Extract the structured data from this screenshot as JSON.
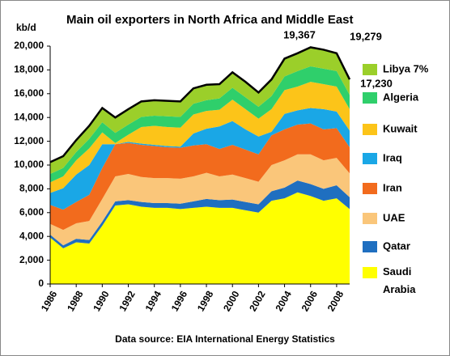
{
  "chart_data": {
    "type": "stacked_area",
    "title": "Main oil exporters  in North Africa and Middle East",
    "y_label": "kb/d",
    "source": "Data source: EIA International Energy Statistics",
    "x": [
      1986,
      1987,
      1988,
      1989,
      1990,
      1991,
      1992,
      1993,
      1994,
      1995,
      1996,
      1997,
      1998,
      1999,
      2000,
      2001,
      2002,
      2003,
      2004,
      2005,
      2006,
      2007,
      2008,
      2009
    ],
    "xlim": [
      1986,
      2009
    ],
    "xticks": [
      1986,
      1988,
      1990,
      1992,
      1994,
      1996,
      1998,
      2000,
      2002,
      2004,
      2006,
      2008
    ],
    "ylim": [
      0,
      20000
    ],
    "yticks": [
      0,
      {
        "value": 2000,
        "label": "2,000"
      },
      {
        "value": 4000,
        "label": "4,000"
      },
      {
        "value": 6000,
        "label": "6,000"
      },
      {
        "value": 8000,
        "label": "8,000"
      },
      {
        "value": 10000,
        "label": "10,000"
      },
      {
        "value": 12000,
        "label": "12,000"
      },
      {
        "value": 14000,
        "label": "14,000"
      },
      {
        "value": 16000,
        "label": "16,000"
      },
      {
        "value": 18000,
        "label": "18,000"
      },
      {
        "value": 20000,
        "label": "20,000"
      }
    ],
    "series": [
      {
        "name": "Saudi Arabia",
        "color": "#ffff00",
        "values": [
          3900,
          3000,
          3500,
          3400,
          4900,
          6600,
          6700,
          6500,
          6400,
          6400,
          6300,
          6400,
          6500,
          6400,
          6400,
          6200,
          6000,
          7000,
          7200,
          7700,
          7400,
          7000,
          7200,
          6300
        ]
      },
      {
        "name": "Qatar",
        "color": "#1f6fc0",
        "values": [
          250,
          250,
          300,
          300,
          350,
          350,
          350,
          400,
          400,
          400,
          450,
          550,
          650,
          650,
          700,
          700,
          700,
          800,
          900,
          1000,
          1000,
          1000,
          1100,
          1000
        ]
      },
      {
        "name": "UAE",
        "color": "#fac67a",
        "values": [
          900,
          1300,
          1300,
          1600,
          1900,
          2100,
          2200,
          2100,
          2100,
          2100,
          2100,
          2100,
          2200,
          2000,
          2100,
          2000,
          1900,
          2200,
          2300,
          2200,
          2500,
          2400,
          2300,
          2000
        ]
      },
      {
        "name": "Iran",
        "color": "#f26b1d",
        "values": [
          1600,
          1700,
          1800,
          2200,
          2600,
          2700,
          2600,
          2700,
          2700,
          2600,
          2600,
          2600,
          2400,
          2300,
          2500,
          2400,
          2300,
          2500,
          2600,
          2500,
          2600,
          2600,
          2500,
          2200
        ]
      },
      {
        "name": "Iraq",
        "color": "#1aa7e6",
        "values": [
          1000,
          1800,
          2300,
          2500,
          2000,
          0,
          100,
          100,
          100,
          100,
          100,
          1000,
          1300,
          1900,
          2000,
          1700,
          1500,
          300,
          1300,
          1200,
          1300,
          1700,
          1400,
          1400
        ]
      },
      {
        "name": "Kuwait",
        "color": "#fcc419",
        "values": [
          900,
          1000,
          1200,
          1400,
          1000,
          100,
          600,
          1400,
          1600,
          1600,
          1600,
          1600,
          1500,
          1400,
          1800,
          1700,
          1500,
          1900,
          2000,
          2000,
          2200,
          2100,
          2100,
          1800
        ]
      },
      {
        "name": "Algeria",
        "color": "#2fcf6b",
        "values": [
          700,
          700,
          700,
          800,
          850,
          850,
          850,
          850,
          850,
          900,
          900,
          900,
          900,
          950,
          1000,
          1000,
          1000,
          1100,
          1150,
          1300,
          1300,
          1300,
          1300,
          1200
        ]
      },
      {
        "name": "Libya 7%",
        "color": "#9bcf2a",
        "values": [
          1000,
          1000,
          1000,
          1100,
          1200,
          1300,
          1300,
          1300,
          1300,
          1300,
          1300,
          1300,
          1300,
          1200,
          1300,
          1300,
          1200,
          1400,
          1500,
          1500,
          1600,
          1600,
          1500,
          1300
        ]
      }
    ],
    "annotations": [
      "19,367",
      "19,279",
      "17,230"
    ]
  }
}
